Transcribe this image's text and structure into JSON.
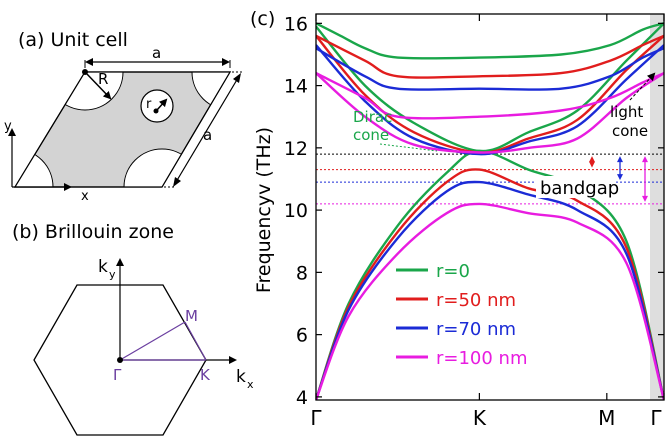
{
  "panel_a": {
    "title": "(a) Unit cell",
    "label_a_top": "a",
    "label_a_side": "a",
    "label_R": "R",
    "label_r": "r",
    "axis_x": "x",
    "axis_y": "y"
  },
  "panel_b": {
    "title": "(b) Brillouin zone",
    "label_ky": "k",
    "label_ky_sub": "y",
    "label_kx": "k",
    "label_kx_sub": "x",
    "label_gamma": "Γ",
    "label_M": "M",
    "label_K": "K",
    "accent_color": "#6b3fa0"
  },
  "panel_c": {
    "title": "(c)",
    "annotations": {
      "dirac_line1": "Dirac",
      "dirac_line2": "cone",
      "light_line1": "light",
      "light_line2": "cone",
      "bandgap": "bandgap"
    }
  },
  "chart_data": {
    "type": "line",
    "ylabel": "Frequencyv (THz)",
    "xlabel": "",
    "x_ticks": [
      "Γ",
      "K",
      "M",
      "Γ"
    ],
    "ylim": [
      3.9,
      16.3
    ],
    "y_ticks": [
      4,
      6,
      8,
      10,
      12,
      14,
      16
    ],
    "legend_position": "bottom-left",
    "series": [
      {
        "name": "r=0",
        "color": "#1aa64a",
        "upper": [
          [
            0,
            16.0
          ],
          [
            0.15,
            15.6
          ],
          [
            0.3,
            15.2
          ],
          [
            0.5,
            14.9
          ],
          [
            1.0,
            14.9
          ],
          [
            1.5,
            15.0
          ],
          [
            1.8,
            15.3
          ],
          [
            2.0,
            15.8
          ],
          [
            2.13,
            16.0
          ]
        ],
        "upper_dirac": [
          [
            0,
            15.9
          ],
          [
            0.3,
            14.0
          ],
          [
            0.6,
            12.8
          ],
          [
            1.0,
            11.9
          ],
          [
            1.3,
            12.5
          ],
          [
            1.6,
            13.2
          ],
          [
            1.9,
            14.8
          ],
          [
            2.13,
            16.0
          ]
        ],
        "lower": [
          [
            0.0,
            3.9
          ],
          [
            0.2,
            7.0
          ],
          [
            0.5,
            9.5
          ],
          [
            0.8,
            11.2
          ],
          [
            1.0,
            11.9
          ],
          [
            1.3,
            11.3
          ],
          [
            1.6,
            10.7
          ],
          [
            1.9,
            9.0
          ],
          [
            2.13,
            3.9
          ]
        ]
      },
      {
        "name": "r=50 nm",
        "color": "#e11d1d",
        "upper": [
          [
            0,
            15.6
          ],
          [
            0.3,
            14.8
          ],
          [
            0.5,
            14.3
          ],
          [
            1.0,
            14.3
          ],
          [
            1.5,
            14.4
          ],
          [
            1.8,
            14.8
          ],
          [
            2.0,
            15.3
          ],
          [
            2.13,
            15.6
          ]
        ],
        "upper_dirac": [
          [
            0,
            15.6
          ],
          [
            0.3,
            13.7
          ],
          [
            0.6,
            12.5
          ],
          [
            1.0,
            11.85
          ],
          [
            1.3,
            12.3
          ],
          [
            1.6,
            12.9
          ],
          [
            1.9,
            14.5
          ],
          [
            2.13,
            15.6
          ]
        ],
        "lower": [
          [
            0.0,
            3.9
          ],
          [
            0.2,
            6.9
          ],
          [
            0.5,
            9.3
          ],
          [
            0.8,
            10.9
          ],
          [
            1.0,
            11.3
          ],
          [
            1.3,
            10.7
          ],
          [
            1.6,
            10.3
          ],
          [
            1.9,
            8.8
          ],
          [
            2.13,
            3.9
          ]
        ]
      },
      {
        "name": "r=70 nm",
        "color": "#1b2bd6",
        "upper": [
          [
            0,
            15.2
          ],
          [
            0.3,
            14.3
          ],
          [
            0.5,
            13.9
          ],
          [
            1.0,
            13.9
          ],
          [
            1.5,
            13.9
          ],
          [
            1.8,
            14.3
          ],
          [
            2.0,
            14.9
          ],
          [
            2.13,
            15.2
          ]
        ],
        "upper_dirac": [
          [
            0,
            15.3
          ],
          [
            0.3,
            13.5
          ],
          [
            0.6,
            12.3
          ],
          [
            1.0,
            11.8
          ],
          [
            1.3,
            12.2
          ],
          [
            1.6,
            12.7
          ],
          [
            1.9,
            14.2
          ],
          [
            2.13,
            15.3
          ]
        ],
        "lower": [
          [
            0.0,
            3.9
          ],
          [
            0.2,
            6.8
          ],
          [
            0.5,
            9.1
          ],
          [
            0.8,
            10.6
          ],
          [
            1.0,
            10.9
          ],
          [
            1.3,
            10.5
          ],
          [
            1.6,
            10.0
          ],
          [
            1.9,
            8.6
          ],
          [
            2.13,
            3.9
          ]
        ]
      },
      {
        "name": "r=100 nm",
        "color": "#e81ce0",
        "upper": [
          [
            0,
            14.4
          ],
          [
            0.3,
            13.6
          ],
          [
            0.5,
            13.0
          ],
          [
            1.0,
            13.0
          ],
          [
            1.5,
            13.2
          ],
          [
            1.8,
            13.6
          ],
          [
            2.0,
            14.1
          ],
          [
            2.13,
            14.4
          ]
        ],
        "upper_dirac": [
          [
            0,
            14.4
          ],
          [
            0.3,
            13.0
          ],
          [
            0.6,
            12.1
          ],
          [
            1.0,
            11.85
          ],
          [
            1.3,
            12.0
          ],
          [
            1.6,
            12.3
          ],
          [
            1.9,
            13.6
          ],
          [
            2.13,
            14.4
          ]
        ],
        "lower": [
          [
            0.0,
            3.9
          ],
          [
            0.2,
            6.6
          ],
          [
            0.5,
            8.6
          ],
          [
            0.8,
            9.9
          ],
          [
            1.0,
            10.2
          ],
          [
            1.3,
            9.9
          ],
          [
            1.6,
            9.6
          ],
          [
            1.9,
            8.3
          ],
          [
            2.13,
            3.9
          ]
        ]
      }
    ],
    "bandgap_lines": [
      {
        "y": 11.8,
        "color": "#000000"
      },
      {
        "y": 11.3,
        "color": "#e11d1d"
      },
      {
        "y": 10.9,
        "color": "#1b2bd6"
      },
      {
        "y": 10.2,
        "color": "#e81ce0"
      }
    ],
    "light_cone_color": "#c8c8c8"
  }
}
